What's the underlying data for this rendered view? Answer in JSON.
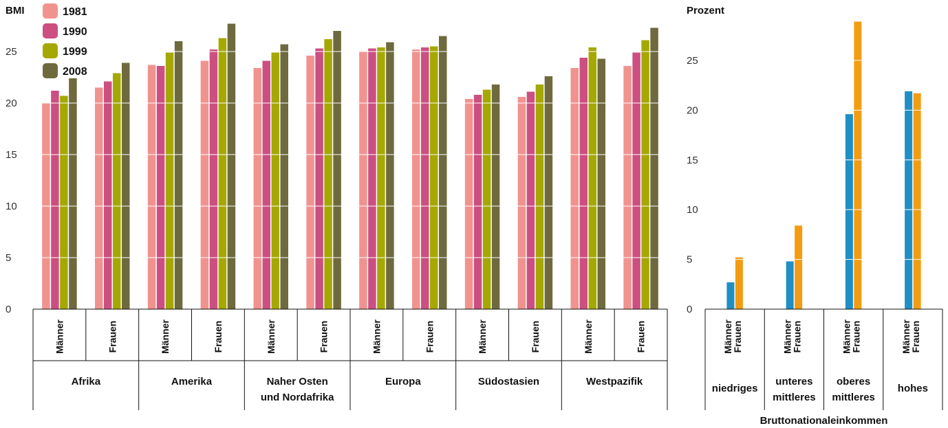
{
  "chart_data": [
    {
      "type": "bar",
      "ylabel": "BMI",
      "ylim": [
        0,
        28
      ],
      "yticks": [
        0,
        5,
        10,
        15,
        20,
        25
      ],
      "grid": true,
      "legend_position": "top-left",
      "groups": [
        {
          "label": "Afrika",
          "subcategories": [
            "Männer",
            "Frauen"
          ]
        },
        {
          "label": "Amerika",
          "subcategories": [
            "Männer",
            "Frauen"
          ]
        },
        {
          "label": "Naher Osten und Nordafrika",
          "label_lines": [
            "Naher Osten",
            "und Nordafrika"
          ],
          "subcategories": [
            "Männer",
            "Frauen"
          ]
        },
        {
          "label": "Europa",
          "subcategories": [
            "Männer",
            "Frauen"
          ]
        },
        {
          "label": "Südostasien",
          "subcategories": [
            "Männer",
            "Frauen"
          ]
        },
        {
          "label": "Westpazifik",
          "subcategories": [
            "Männer",
            "Frauen"
          ]
        }
      ],
      "series": [
        {
          "name": "1981",
          "color": "#f0938f",
          "values": [
            20.0,
            21.5,
            23.7,
            24.1,
            23.4,
            24.6,
            25.0,
            25.2,
            20.4,
            20.6,
            23.4,
            23.6
          ]
        },
        {
          "name": "1990",
          "color": "#cc4f82",
          "values": [
            21.2,
            22.1,
            23.6,
            25.2,
            24.1,
            25.3,
            25.3,
            25.4,
            20.8,
            21.1,
            24.4,
            24.9
          ]
        },
        {
          "name": "1999",
          "color": "#a5a800",
          "values": [
            20.7,
            22.9,
            24.9,
            26.3,
            24.9,
            26.2,
            25.4,
            25.5,
            21.3,
            21.8,
            25.4,
            26.1
          ]
        },
        {
          "name": "2008",
          "color": "#6e6a3e",
          "values": [
            22.4,
            23.9,
            26.0,
            27.7,
            25.7,
            27.0,
            25.9,
            26.5,
            21.8,
            22.6,
            24.3,
            27.3
          ]
        }
      ]
    },
    {
      "type": "bar",
      "ylabel": "Prozent",
      "xlabel": "Bruttonationaleinkommen",
      "ylim": [
        0,
        29
      ],
      "yticks": [
        0,
        5,
        10,
        15,
        20,
        25
      ],
      "grid": true,
      "groups": [
        {
          "label": "niedriges",
          "label_lines": [
            "niedriges"
          ]
        },
        {
          "label": "unteres mittleres",
          "label_lines": [
            "unteres",
            "mittleres"
          ]
        },
        {
          "label": "oberes mittleres",
          "label_lines": [
            "oberes",
            "mittleres"
          ]
        },
        {
          "label": "hohes",
          "label_lines": [
            "hohes"
          ]
        }
      ],
      "subcategories": [
        "Männer",
        "Frauen"
      ],
      "series": [
        {
          "name": "Männer",
          "color": "#1f8fc4",
          "values": [
            2.7,
            4.8,
            19.6,
            21.9
          ]
        },
        {
          "name": "Frauen",
          "color": "#f39c12",
          "values": [
            5.2,
            8.4,
            28.9,
            21.7
          ]
        }
      ]
    }
  ]
}
